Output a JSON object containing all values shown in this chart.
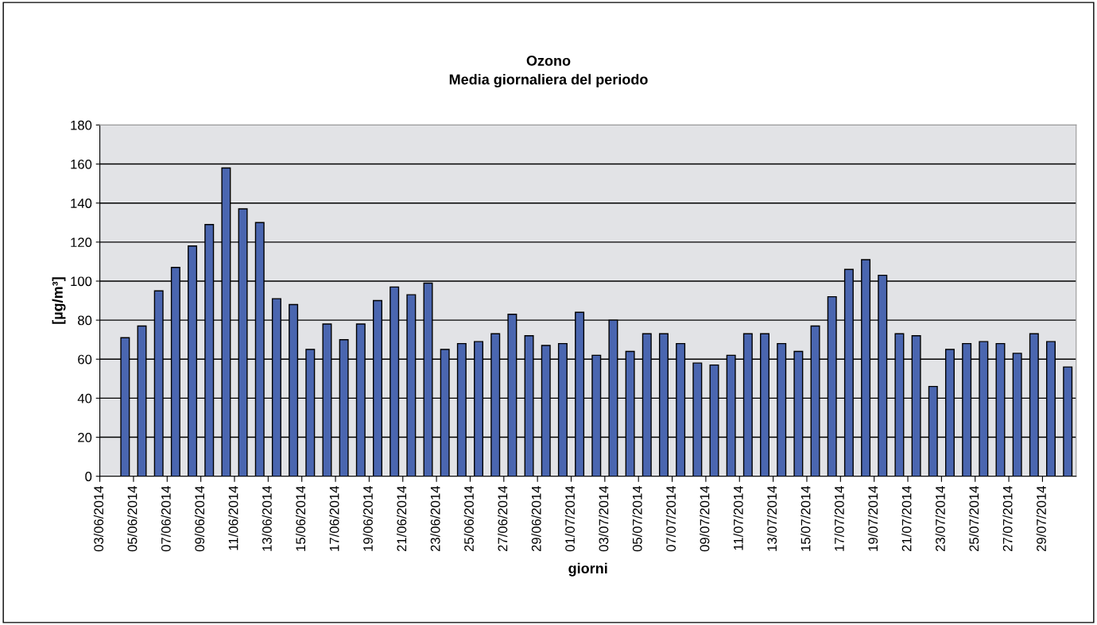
{
  "chart_data": {
    "type": "bar",
    "title": "Ozono",
    "subtitle": "Media giornaliera del periodo",
    "xlabel": "giorni",
    "ylabel": "[µg/m³]",
    "categories": [
      "03/06/2014",
      null,
      "05/06/2014",
      null,
      "07/06/2014",
      null,
      "09/06/2014",
      null,
      "11/06/2014",
      null,
      "13/06/2014",
      null,
      "15/06/2014",
      null,
      "17/06/2014",
      null,
      "19/06/2014",
      null,
      "21/06/2014",
      null,
      "23/06/2014",
      null,
      "25/06/2014",
      null,
      "27/06/2014",
      null,
      "29/06/2014",
      null,
      "01/07/2014",
      null,
      "03/07/2014",
      null,
      "05/07/2014",
      null,
      "07/07/2014",
      null,
      "09/07/2014",
      null,
      "11/07/2014",
      null,
      "13/07/2014",
      null,
      "15/07/2014",
      null,
      "17/07/2014",
      null,
      "19/07/2014",
      null,
      "21/07/2014",
      null,
      "23/07/2014",
      null,
      "25/07/2014",
      null,
      "27/07/2014",
      null,
      "29/07/2014",
      null
    ],
    "values": [
      null,
      71,
      77,
      95,
      107,
      118,
      129,
      158,
      137,
      130,
      91,
      88,
      65,
      78,
      70,
      78,
      90,
      97,
      93,
      99,
      65,
      68,
      69,
      73,
      83,
      72,
      67,
      68,
      84,
      62,
      80,
      64,
      73,
      73,
      68,
      58,
      57,
      62,
      73,
      73,
      68,
      64,
      77,
      92,
      106,
      111,
      103,
      73,
      72,
      46,
      65,
      68,
      69,
      68,
      63,
      73,
      69,
      56
    ],
    "color": "#4a66b0",
    "ylim": [
      0,
      180
    ],
    "yticks": [
      0,
      20,
      40,
      60,
      80,
      100,
      120,
      140,
      160,
      180
    ],
    "grid": "y"
  }
}
